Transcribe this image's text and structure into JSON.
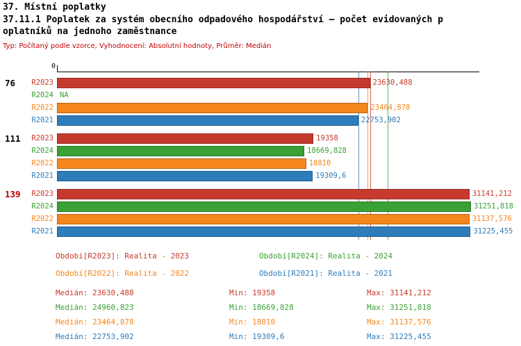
{
  "title": "37. Místní poplatky",
  "subtitle_line1": "37.11.1 Poplatek za systém obecního odpadového hospodářství – počet evidovaných p",
  "subtitle_line2": "oplatníků na jednoho zaměstnance",
  "meta": "Typ: Počítaný podle vzorce, Vyhodnocení: Absolutní hodnoty, Průměr: Medián",
  "axis": {
    "origin": "0"
  },
  "series_colors": {
    "R2023": "#c63a2d",
    "R2024": "#3aa135",
    "R2022": "#f5861d",
    "R2021": "#2f7cba"
  },
  "chart_data": {
    "type": "bar",
    "orientation": "horizontal",
    "xlim": [
      0,
      31251.818
    ],
    "series_order": [
      "R2023",
      "R2024",
      "R2022",
      "R2021"
    ],
    "medians": {
      "R2023": 23630.488,
      "R2024": 24960.823,
      "R2022": 23464.878,
      "R2021": 22753.902
    },
    "groups": [
      {
        "label": "76",
        "label_color": "#000000",
        "bars": [
          {
            "series": "R2023",
            "value": 23630.488,
            "label": "23630,488"
          },
          {
            "series": "R2024",
            "value": null,
            "label": "NA"
          },
          {
            "series": "R2022",
            "value": 23464.878,
            "label": "23464,878"
          },
          {
            "series": "R2021",
            "value": 22753.902,
            "label": "22753,902"
          }
        ]
      },
      {
        "label": "111",
        "label_color": "#000000",
        "bars": [
          {
            "series": "R2023",
            "value": 19358,
            "label": "19358"
          },
          {
            "series": "R2024",
            "value": 18669.828,
            "label": "18669,828"
          },
          {
            "series": "R2022",
            "value": 18810,
            "label": "18810"
          },
          {
            "series": "R2021",
            "value": 19309.6,
            "label": "19309,6"
          }
        ]
      },
      {
        "label": "139",
        "label_color": "#c00000",
        "bars": [
          {
            "series": "R2023",
            "value": 31141.212,
            "label": "31141,212"
          },
          {
            "series": "R2024",
            "value": 31251.818,
            "label": "31251,818"
          },
          {
            "series": "R2022",
            "value": 31137.576,
            "label": "31137,576"
          },
          {
            "series": "R2021",
            "value": 31225.455,
            "label": "31225,455"
          }
        ]
      }
    ]
  },
  "legend": [
    {
      "series": "R2023",
      "text": "Období[R2023]: Realita - 2023",
      "col": 0,
      "row": 0
    },
    {
      "series": "R2024",
      "text": "Období[R2024]: Realita - 2024",
      "col": 1,
      "row": 0
    },
    {
      "series": "R2022",
      "text": "Období[R2022]: Realita - 2022",
      "col": 0,
      "row": 1
    },
    {
      "series": "R2021",
      "text": "Období[R2021]: Realita - 2021",
      "col": 1,
      "row": 1
    }
  ],
  "stats": [
    {
      "series": "R2023",
      "median": "Medián: 23630,488",
      "min": "Min: 19358",
      "max": "Max: 31141,212"
    },
    {
      "series": "R2024",
      "median": "Medián: 24960,823",
      "min": "Min: 18669,828",
      "max": "Max: 31251,818"
    },
    {
      "series": "R2022",
      "median": "Medián: 23464,878",
      "min": "Min: 18810",
      "max": "Max: 31137,576"
    },
    {
      "series": "R2021",
      "median": "Medián: 22753,902",
      "min": "Min: 19309,6",
      "max": "Max: 31225,455"
    }
  ]
}
